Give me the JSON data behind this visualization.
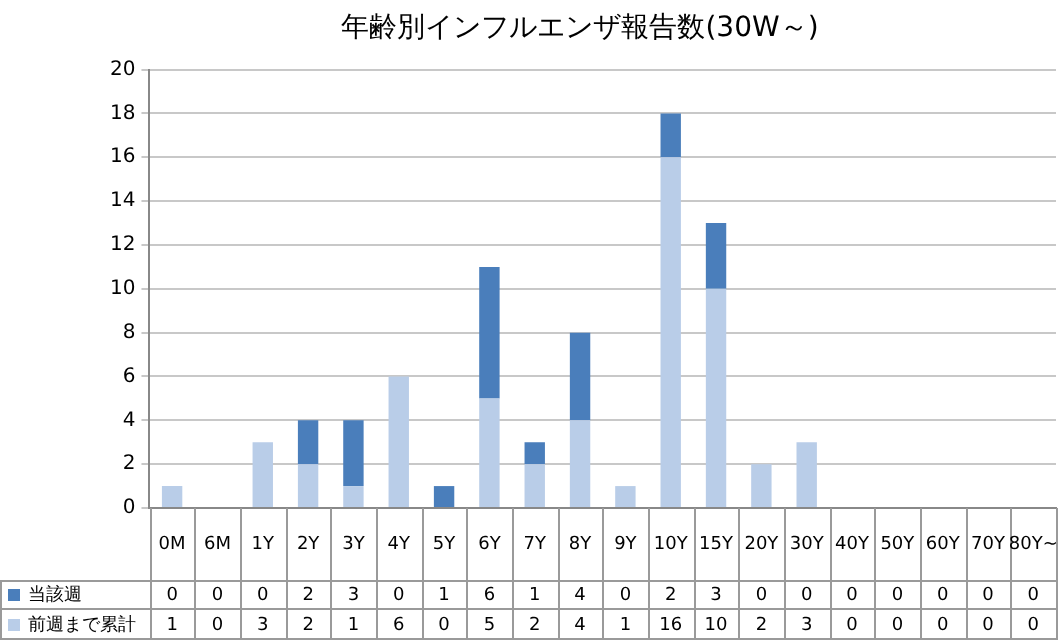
{
  "chart_data": {
    "type": "bar",
    "title": "年齢別インフルエンザ報告数(30W～)",
    "categories": [
      "0M",
      "6M",
      "1Y",
      "2Y",
      "3Y",
      "4Y",
      "5Y",
      "6Y",
      "7Y",
      "8Y",
      "9Y",
      "10Y",
      "15Y",
      "20Y",
      "30Y",
      "40Y",
      "50Y",
      "60Y",
      "70Y",
      "80Y~"
    ],
    "series": [
      {
        "name": "前週まで累計",
        "color": "#b9cde8",
        "values": [
          1,
          0,
          3,
          2,
          1,
          6,
          0,
          5,
          2,
          4,
          1,
          16,
          10,
          2,
          3,
          0,
          0,
          0,
          0,
          0
        ]
      },
      {
        "name": "当該週",
        "color": "#4a7ebb",
        "values": [
          0,
          0,
          0,
          2,
          3,
          0,
          1,
          6,
          1,
          4,
          0,
          2,
          3,
          0,
          0,
          0,
          0,
          0,
          0,
          0
        ]
      }
    ],
    "stacked": true,
    "ylim": [
      0,
      20
    ],
    "yticks": [
      0,
      2,
      4,
      6,
      8,
      10,
      12,
      14,
      16,
      18,
      20
    ],
    "grid": "y",
    "legend": "bottom",
    "data_labels": true
  }
}
